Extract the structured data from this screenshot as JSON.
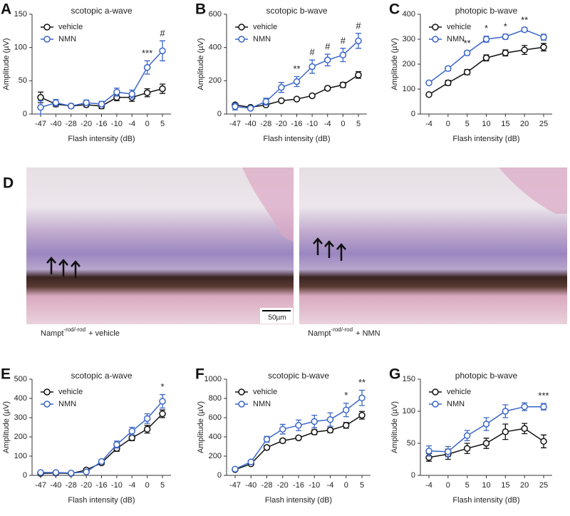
{
  "chart_data": [
    {
      "type": "line",
      "panel": "A",
      "title": "scotopic a-wave",
      "xlabel": "Flash intensity (dB)",
      "ylabel": "Amplitude (µV)",
      "categories": [
        "-47",
        "-40",
        "-28",
        "-20",
        "-16",
        "-10",
        "-4",
        "0",
        "5"
      ],
      "ylim": [
        0,
        150
      ],
      "yticks": [
        0,
        50,
        100,
        150
      ],
      "legend": "upper left",
      "series": [
        {
          "name": "vehicle",
          "color": "#111111",
          "values": [
            25,
            15,
            12,
            14,
            12,
            25,
            25,
            32,
            38
          ],
          "errors": [
            8,
            4,
            3,
            3,
            4,
            5,
            6,
            6,
            7
          ]
        },
        {
          "name": "NMN",
          "color": "#3a66c8",
          "values": [
            10,
            17,
            12,
            17,
            15,
            33,
            30,
            70,
            95
          ],
          "errors": [
            10,
            5,
            3,
            4,
            4,
            6,
            6,
            10,
            15
          ]
        }
      ],
      "annotations": [
        {
          "x": "0",
          "text": "***"
        },
        {
          "x": "5",
          "text": "#"
        }
      ]
    },
    {
      "type": "line",
      "panel": "B",
      "title": "scotopic b-wave",
      "xlabel": "Flash intensity (dB)",
      "ylabel": "Amplitude (µV)",
      "categories": [
        "-47",
        "-40",
        "-28",
        "-20",
        "-16",
        "-10",
        "-4",
        "0",
        "5"
      ],
      "ylim": [
        0,
        600
      ],
      "yticks": [
        0,
        200,
        400,
        600
      ],
      "legend": "upper left",
      "series": [
        {
          "name": "vehicle",
          "color": "#111111",
          "values": [
            55,
            40,
            55,
            80,
            90,
            110,
            155,
            175,
            235
          ],
          "errors": [
            10,
            5,
            8,
            8,
            8,
            10,
            12,
            15,
            20
          ]
        },
        {
          "name": "NMN",
          "color": "#3a66c8",
          "values": [
            45,
            35,
            75,
            160,
            195,
            285,
            325,
            355,
            440
          ],
          "errors": [
            20,
            10,
            20,
            30,
            30,
            40,
            35,
            40,
            45
          ]
        }
      ],
      "annotations": [
        {
          "x": "-16",
          "text": "**"
        },
        {
          "x": "-10",
          "text": "#"
        },
        {
          "x": "-4",
          "text": "#"
        },
        {
          "x": "0",
          "text": "#"
        },
        {
          "x": "5",
          "text": "#"
        }
      ]
    },
    {
      "type": "line",
      "panel": "C",
      "title": "photopic b-wave",
      "xlabel": "Flash intensity (dB)",
      "ylabel": "Amplitude (µV)",
      "categories": [
        "-4",
        "0",
        "5",
        "10",
        "15",
        "20",
        "25"
      ],
      "ylim": [
        0,
        400
      ],
      "yticks": [
        0,
        100,
        200,
        300,
        400
      ],
      "legend": "upper left",
      "series": [
        {
          "name": "vehicle",
          "color": "#111111",
          "values": [
            78,
            125,
            168,
            225,
            245,
            257,
            268
          ],
          "errors": [
            5,
            10,
            10,
            12,
            12,
            18,
            15
          ]
        },
        {
          "name": "NMN",
          "color": "#3a66c8",
          "values": [
            125,
            182,
            245,
            300,
            310,
            338,
            308
          ],
          "errors": [
            5,
            8,
            8,
            12,
            10,
            8,
            12
          ]
        }
      ],
      "annotations": [
        {
          "x": "5",
          "text": "**"
        },
        {
          "x": "10",
          "text": "*"
        },
        {
          "x": "15",
          "text": "*"
        },
        {
          "x": "20",
          "text": "**"
        }
      ]
    },
    {
      "type": "line",
      "panel": "E",
      "title": "scotopic a-wave",
      "xlabel": "Flash intensity (dB)",
      "ylabel": "Amplitude (µV)",
      "categories": [
        "-47",
        "-40",
        "-28",
        "-20",
        "-16",
        "-10",
        "-4",
        "0",
        "5"
      ],
      "ylim": [
        0,
        500
      ],
      "yticks": [
        0,
        100,
        200,
        300,
        400,
        500
      ],
      "legend": "upper left",
      "series": [
        {
          "name": "vehicle",
          "color": "#111111",
          "values": [
            10,
            12,
            10,
            28,
            65,
            140,
            195,
            240,
            320
          ],
          "errors": [
            5,
            5,
            4,
            6,
            8,
            15,
            15,
            20,
            20
          ]
        },
        {
          "name": "NMN",
          "color": "#3a66c8",
          "values": [
            15,
            15,
            12,
            18,
            72,
            160,
            230,
            295,
            385
          ],
          "errors": [
            5,
            5,
            4,
            5,
            10,
            18,
            20,
            25,
            35
          ]
        }
      ],
      "annotations": [
        {
          "x": "5",
          "text": "*"
        }
      ]
    },
    {
      "type": "line",
      "panel": "F",
      "title": "scotopic b-wave",
      "xlabel": "Flash intensity (dB)",
      "ylabel": "Amplitude (µV)",
      "categories": [
        "-47",
        "-40",
        "-28",
        "-20",
        "-16",
        "-10",
        "-4",
        "0",
        "5"
      ],
      "ylim": [
        0,
        1000
      ],
      "yticks": [
        0,
        200,
        400,
        600,
        800,
        1000
      ],
      "legend": "upper left",
      "series": [
        {
          "name": "vehicle",
          "color": "#111111",
          "values": [
            60,
            120,
            290,
            360,
            390,
            450,
            470,
            520,
            625
          ],
          "errors": [
            8,
            10,
            20,
            20,
            20,
            25,
            25,
            30,
            40
          ]
        },
        {
          "name": "NMN",
          "color": "#3a66c8",
          "values": [
            65,
            140,
            375,
            480,
            520,
            560,
            580,
            680,
            805
          ],
          "errors": [
            8,
            12,
            30,
            50,
            55,
            65,
            70,
            70,
            80
          ]
        }
      ],
      "annotations": [
        {
          "x": "0",
          "text": "*"
        },
        {
          "x": "5",
          "text": "**"
        }
      ]
    },
    {
      "type": "line",
      "panel": "G",
      "title": "photopic b-wave",
      "xlabel": "Flash intensity (dB)",
      "ylabel": "Amplitude (µV)",
      "categories": [
        "-4",
        "0",
        "5",
        "10",
        "15",
        "20",
        "25"
      ],
      "ylim": [
        0,
        150
      ],
      "yticks": [
        0,
        50,
        100,
        150
      ],
      "legend": "upper left",
      "series": [
        {
          "name": "vehicle",
          "color": "#111111",
          "values": [
            28,
            33,
            42,
            50,
            68,
            73,
            53
          ],
          "errors": [
            6,
            8,
            8,
            8,
            12,
            8,
            10
          ]
        },
        {
          "name": "NMN",
          "color": "#3a66c8",
          "values": [
            38,
            37,
            62,
            80,
            100,
            107,
            107
          ],
          "errors": [
            8,
            8,
            8,
            10,
            10,
            6,
            5
          ]
        }
      ],
      "annotations": [
        {
          "x": "25",
          "text": "***"
        }
      ]
    }
  ],
  "images": {
    "panel": "D",
    "scale_bar": "50µm",
    "captions": [
      {
        "main": "Nampt",
        "sup": "-rod/-rod",
        "rest": "+ vehicle"
      },
      {
        "main": "Nampt",
        "sup": "-rod/-rod",
        "rest": "+ NMN"
      }
    ]
  }
}
